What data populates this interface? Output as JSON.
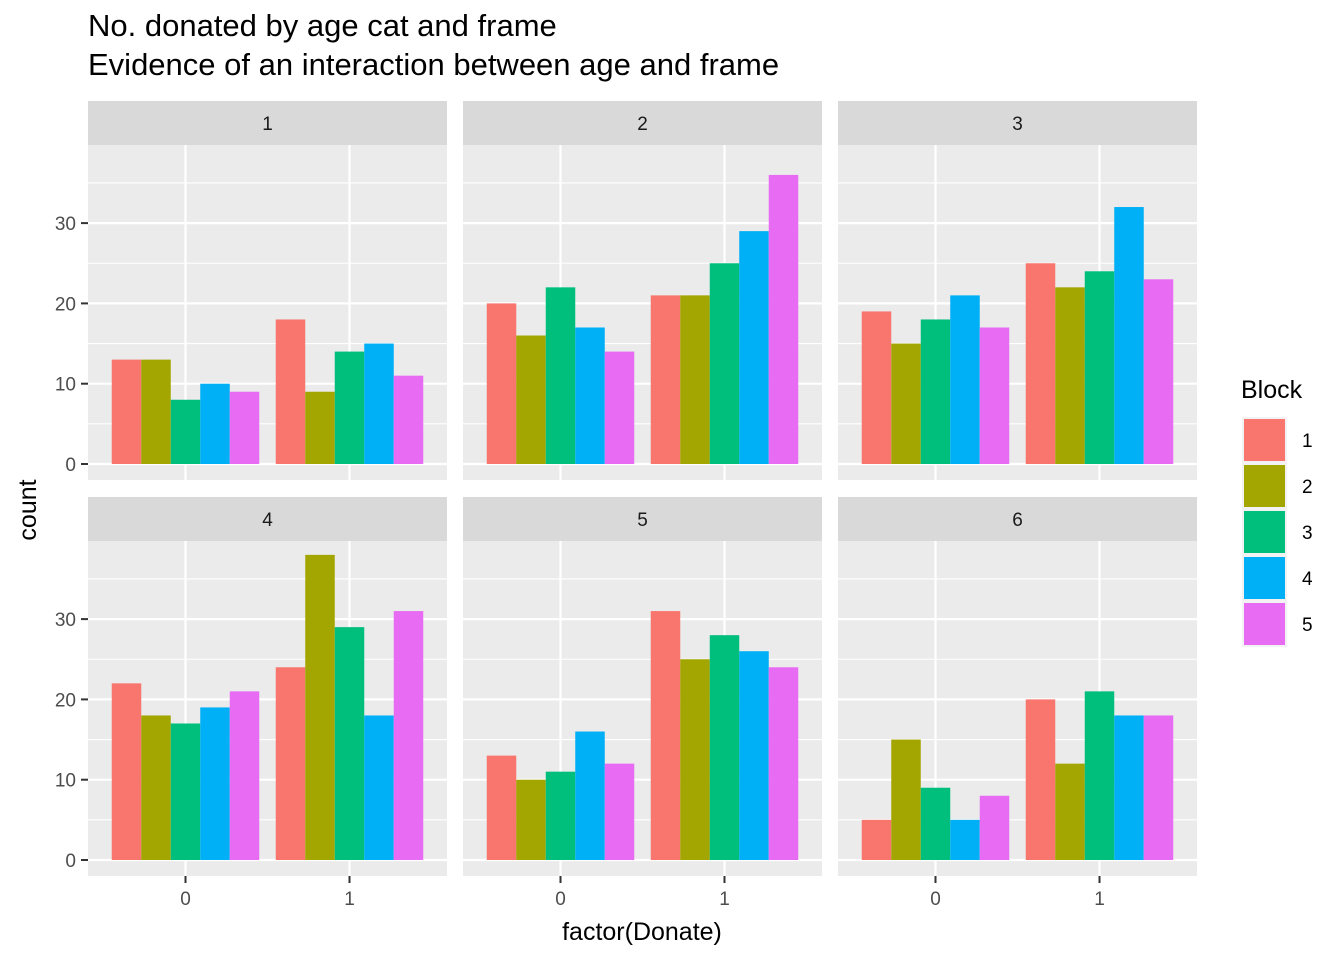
{
  "chart_data": {
    "type": "bar",
    "title": "No. donated by age cat and frame",
    "subtitle": "Evidence of an interaction between age and frame",
    "xlabel": "factor(Donate)",
    "ylabel": "count",
    "x_categories": [
      "0",
      "1"
    ],
    "y_ticks": [
      0,
      10,
      20,
      30
    ],
    "ylim": [
      0,
      39.5
    ],
    "grid": true,
    "legend": {
      "title": "Block",
      "placement": "right",
      "entries": [
        "1",
        "2",
        "3",
        "4",
        "5"
      ]
    },
    "series_colors": [
      "#F8766D",
      "#A3A500",
      "#00BF7D",
      "#00B0F6",
      "#E76BF3"
    ],
    "facets": [
      {
        "label": "1",
        "series": [
          {
            "name": "1",
            "values": [
              13,
              18
            ]
          },
          {
            "name": "2",
            "values": [
              13,
              9
            ]
          },
          {
            "name": "3",
            "values": [
              8,
              14
            ]
          },
          {
            "name": "4",
            "values": [
              10,
              15
            ]
          },
          {
            "name": "5",
            "values": [
              9,
              11
            ]
          }
        ]
      },
      {
        "label": "2",
        "series": [
          {
            "name": "1",
            "values": [
              20,
              21
            ]
          },
          {
            "name": "2",
            "values": [
              16,
              21
            ]
          },
          {
            "name": "3",
            "values": [
              22,
              25
            ]
          },
          {
            "name": "4",
            "values": [
              17,
              29
            ]
          },
          {
            "name": "5",
            "values": [
              14,
              36
            ]
          }
        ]
      },
      {
        "label": "3",
        "series": [
          {
            "name": "1",
            "values": [
              19,
              25
            ]
          },
          {
            "name": "2",
            "values": [
              15,
              22
            ]
          },
          {
            "name": "3",
            "values": [
              18,
              24
            ]
          },
          {
            "name": "4",
            "values": [
              21,
              32
            ]
          },
          {
            "name": "5",
            "values": [
              17,
              23
            ]
          }
        ]
      },
      {
        "label": "4",
        "series": [
          {
            "name": "1",
            "values": [
              22,
              24
            ]
          },
          {
            "name": "2",
            "values": [
              18,
              38
            ]
          },
          {
            "name": "3",
            "values": [
              17,
              29
            ]
          },
          {
            "name": "4",
            "values": [
              19,
              18
            ]
          },
          {
            "name": "5",
            "values": [
              21,
              31
            ]
          }
        ]
      },
      {
        "label": "5",
        "series": [
          {
            "name": "1",
            "values": [
              13,
              31
            ]
          },
          {
            "name": "2",
            "values": [
              10,
              25
            ]
          },
          {
            "name": "3",
            "values": [
              11,
              28
            ]
          },
          {
            "name": "4",
            "values": [
              16,
              26
            ]
          },
          {
            "name": "5",
            "values": [
              12,
              24
            ]
          }
        ]
      },
      {
        "label": "6",
        "series": [
          {
            "name": "1",
            "values": [
              5,
              20
            ]
          },
          {
            "name": "2",
            "values": [
              15,
              12
            ]
          },
          {
            "name": "3",
            "values": [
              9,
              21
            ]
          },
          {
            "name": "4",
            "values": [
              5,
              18
            ]
          },
          {
            "name": "5",
            "values": [
              8,
              18
            ]
          }
        ]
      }
    ]
  }
}
